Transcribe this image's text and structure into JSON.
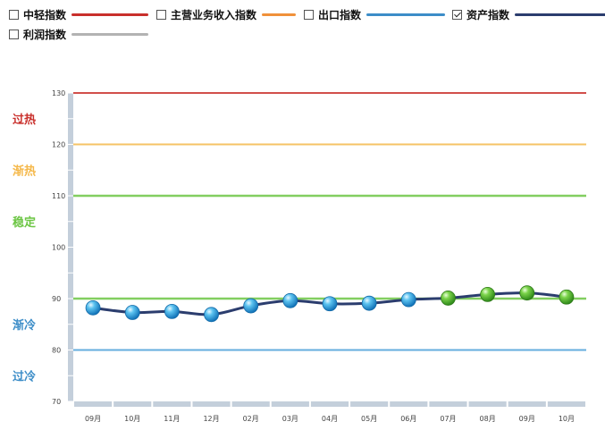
{
  "legend": {
    "items": [
      {
        "label": "中轻指数",
        "color": "#c9302c",
        "checked": false
      },
      {
        "label": "主营业务收入指数",
        "color": "#f0913a",
        "checked": false
      },
      {
        "label": "出口指数",
        "color": "#3c8dc8",
        "checked": false
      },
      {
        "label": "资产指数",
        "color": "#2b3d6e",
        "checked": true
      },
      {
        "label": "利润指数",
        "color": "#b3b3b3",
        "checked": false
      }
    ]
  },
  "zones": [
    {
      "label": "过热",
      "value": 130,
      "color": "#c9302c"
    },
    {
      "label": "渐热",
      "value": 120,
      "color": "#f5b84a"
    },
    {
      "label": "稳定",
      "value": 110,
      "color": "#6cc644"
    },
    {
      "label": "渐冷",
      "value": 90,
      "color": "#6cc644"
    },
    {
      "label": "过冷",
      "value": 80,
      "color": "#4a9fd8"
    }
  ],
  "zone_text": [
    {
      "text": "过热",
      "at": 125,
      "color": "#c9302c"
    },
    {
      "text": "渐热",
      "at": 115,
      "color": "#f5b84a"
    },
    {
      "text": "稳定",
      "at": 105,
      "color": "#6cc644"
    },
    {
      "text": "渐冷",
      "at": 85,
      "color": "#3c8dc8"
    },
    {
      "text": "过冷",
      "at": 75,
      "color": "#3c8dc8"
    }
  ],
  "chart_data": {
    "type": "line",
    "categories": [
      "09月",
      "10月",
      "11月",
      "12月",
      "02月",
      "03月",
      "04月",
      "05月",
      "06月",
      "07月",
      "08月",
      "09月",
      "10月"
    ],
    "series": [
      {
        "name": "资产指数",
        "color": "#2b3d6e",
        "values": [
          88.2,
          87.3,
          87.5,
          86.9,
          88.6,
          89.6,
          89.0,
          89.1,
          89.8,
          90.1,
          90.8,
          91.1,
          90.3
        ]
      }
    ],
    "marker_colors": [
      "blue",
      "blue",
      "blue",
      "blue",
      "blue",
      "blue",
      "blue",
      "blue",
      "blue",
      "green",
      "green",
      "green",
      "green"
    ],
    "ylim": [
      70,
      130
    ],
    "yticks": [
      70,
      80,
      90,
      100,
      110,
      120,
      130
    ],
    "grid": false
  }
}
